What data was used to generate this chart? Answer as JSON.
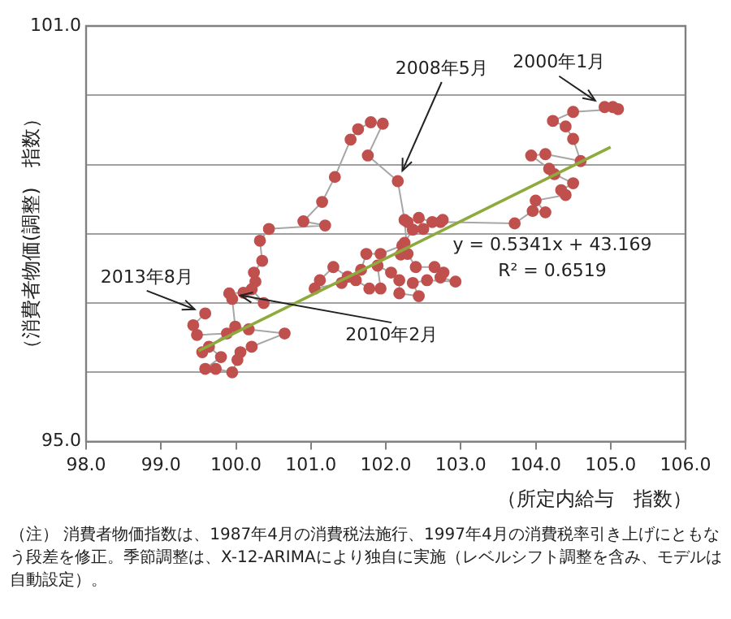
{
  "chart_data": {
    "type": "line",
    "ylabel": "（消費者物価(調整)　指数）",
    "xlabel": "（所定内給与　指数）",
    "xlim": [
      98,
      106
    ],
    "xticks": [
      {
        "value": 98,
        "label": "98.0"
      },
      {
        "value": 99,
        "label": "99.0"
      },
      {
        "value": 100,
        "label": "100.0"
      },
      {
        "value": 101,
        "label": "101.0"
      },
      {
        "value": 102,
        "label": "102.0"
      },
      {
        "value": 103,
        "label": "103.0"
      },
      {
        "value": 104,
        "label": "104.0"
      },
      {
        "value": 105,
        "label": "105.0"
      },
      {
        "value": 106,
        "label": "106.0"
      }
    ],
    "ylim": [
      95,
      101
    ],
    "yticks": [
      {
        "value": 95,
        "label": "95.0"
      },
      {
        "value": 96,
        "label": null
      },
      {
        "value": 97,
        "label": null
      },
      {
        "value": 98,
        "label": null
      },
      {
        "value": 99,
        "label": null
      },
      {
        "value": 100,
        "label": null
      },
      {
        "value": 101,
        "label": "101.0"
      }
    ],
    "grid": "y",
    "marker": "circle",
    "legend": false,
    "series": [
      {
        "type": "line",
        "color": "#c0504d",
        "x": [
          104.92,
          105.03,
          105.1,
          104.5,
          104.23,
          104.4,
          104.5,
          104.6,
          104.13,
          103.94,
          104.18,
          104.25,
          104.5,
          104.34,
          104.4,
          104.0,
          104.13,
          103.96,
          103.72,
          102.73,
          102.76,
          102.62,
          102.44,
          102.29,
          102.5,
          102.36,
          102.25,
          102.2,
          102.22,
          101.93,
          101.74,
          101.67,
          101.49,
          101.3,
          101.12,
          101.05,
          101.41,
          101.6,
          101.78,
          101.93,
          101.89,
          102.07,
          102.18,
          102.18,
          102.44,
          102.36,
          102.55,
          102.93,
          102.73,
          102.77,
          102.65,
          102.4,
          102.29,
          102.25,
          102.16,
          101.76,
          101.96,
          101.8,
          101.63,
          101.53,
          101.32,
          101.15,
          100.9,
          101.19,
          100.44,
          100.32,
          100.35,
          100.24,
          100.26,
          100.21,
          100.37,
          100.1,
          99.91,
          99.95,
          99.99,
          100.17,
          100.65,
          100.21,
          100.06,
          100.02,
          99.95,
          99.73,
          99.59,
          99.8,
          99.64,
          99.55,
          99.88,
          99.48,
          99.43,
          99.59
        ],
        "values": [
          99.83,
          99.83,
          99.8,
          99.76,
          99.63,
          99.55,
          99.37,
          99.05,
          99.15,
          99.13,
          98.94,
          98.86,
          98.73,
          98.63,
          98.56,
          98.48,
          98.31,
          98.33,
          98.15,
          98.17,
          98.2,
          98.17,
          98.23,
          98.17,
          98.07,
          98.06,
          97.87,
          97.7,
          97.83,
          97.71,
          97.71,
          97.48,
          97.38,
          97.52,
          97.33,
          97.21,
          97.29,
          97.33,
          97.21,
          97.21,
          97.54,
          97.44,
          97.33,
          97.14,
          97.1,
          97.29,
          97.33,
          97.31,
          97.37,
          97.44,
          97.52,
          97.52,
          97.71,
          98.2,
          98.76,
          99.13,
          99.59,
          99.61,
          99.51,
          99.36,
          98.82,
          98.46,
          98.18,
          98.12,
          98.07,
          97.9,
          97.61,
          97.44,
          97.31,
          97.2,
          97.0,
          97.15,
          97.14,
          97.06,
          96.66,
          96.62,
          96.56,
          96.37,
          96.29,
          96.18,
          96.0,
          96.05,
          96.05,
          96.22,
          96.37,
          96.29,
          96.56,
          96.54,
          96.68,
          96.85
        ]
      },
      {
        "type": "line",
        "color": "#8faa3c",
        "marker": "none",
        "x": [
          99.5,
          105.0
        ],
        "values": [
          96.31,
          99.25
        ]
      }
    ],
    "annotations": [
      {
        "text": "2000年1月",
        "x": 104.92,
        "y": 99.83
      },
      {
        "text": "2008年5月",
        "x": 102.16,
        "y": 98.76
      },
      {
        "text": "2013年8月",
        "x": 99.59,
        "y": 96.85
      },
      {
        "text": "2010年2月",
        "x": 99.91,
        "y": 97.14
      },
      "y = 0.5341x + 43.169",
      "R² = 0.6519",
      "（注） 消費者物価指数は、1987年4月の消費税法施行、1997年4月の消費税率引き上げにともなう段差を修正。季節調整は、X-12-ARIMAにより独自に実施（レベルシフト調整を含み、モデルは自動設定）。"
    ]
  }
}
